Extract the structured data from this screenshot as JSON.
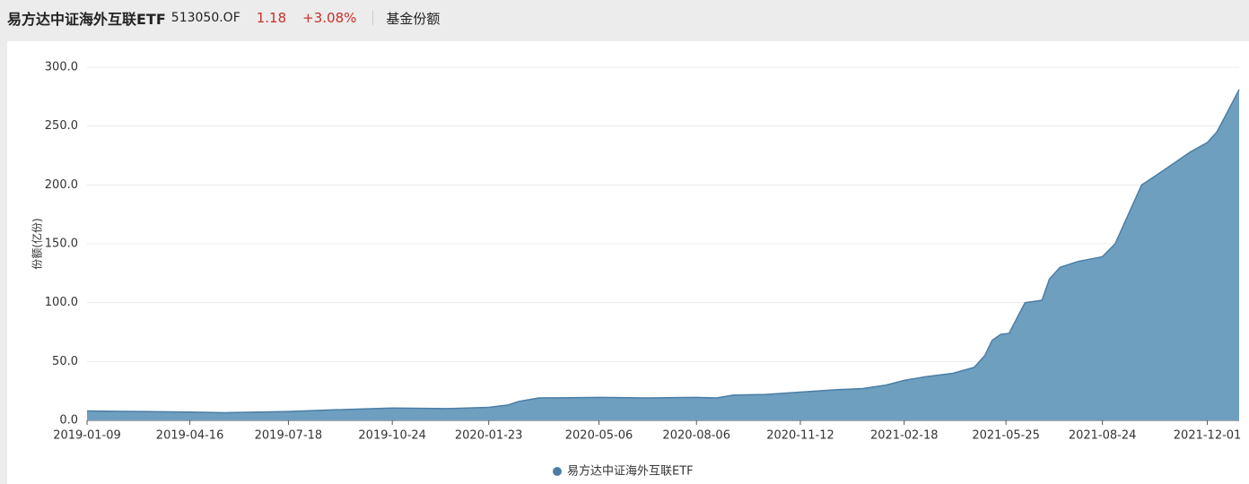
{
  "header": {
    "title": "易方达中证海外互联ETF",
    "code": "513050.OF",
    "price": "1.18",
    "change": "+3.08%",
    "tab": "基金份额"
  },
  "chart_data": {
    "type": "area",
    "y_label": "份额(亿份)",
    "x": [
      "2019-01-09",
      "2019-03-01",
      "2019-04-16",
      "2019-05-20",
      "2019-06-20",
      "2019-07-18",
      "2019-09-01",
      "2019-10-24",
      "2019-12-15",
      "2020-01-23",
      "2020-02-10",
      "2020-02-20",
      "2020-03-10",
      "2020-05-06",
      "2020-06-20",
      "2020-08-06",
      "2020-08-25",
      "2020-09-10",
      "2020-10-10",
      "2020-11-12",
      "2020-12-15",
      "2021-01-10",
      "2021-02-01",
      "2021-02-18",
      "2021-03-10",
      "2021-04-05",
      "2021-04-25",
      "2021-05-05",
      "2021-05-12",
      "2021-05-20",
      "2021-05-28",
      "2021-06-05",
      "2021-06-12",
      "2021-06-28",
      "2021-07-05",
      "2021-07-15",
      "2021-08-01",
      "2021-08-24",
      "2021-09-05",
      "2021-09-15",
      "2021-09-30",
      "2021-10-20",
      "2021-11-15",
      "2021-12-01",
      "2021-12-10",
      "2021-12-20",
      "2021-12-31"
    ],
    "series": [
      {
        "name": "易方达中证海外互联ETF",
        "color": "#4a7ea6",
        "fill": "#6f9fbf",
        "values": [
          8,
          7.5,
          7,
          6.5,
          7,
          7.5,
          9,
          10.5,
          10,
          11,
          13,
          16,
          19,
          19.5,
          19,
          19.5,
          19,
          21.5,
          22,
          24,
          26,
          27,
          30,
          34,
          37,
          40,
          45,
          55,
          68,
          73,
          74,
          88,
          100,
          102,
          120,
          130,
          135,
          139,
          150,
          170,
          200,
          212,
          228,
          236,
          245,
          262,
          281
        ]
      }
    ],
    "xlim": [
      "2019-01-09",
      "2021-12-31"
    ],
    "xticks": [
      "2019-01-09",
      "2019-04-16",
      "2019-07-18",
      "2019-10-24",
      "2020-01-23",
      "2020-05-06",
      "2020-08-06",
      "2020-11-12",
      "2021-02-18",
      "2021-05-25",
      "2021-08-24",
      "2021-12-01"
    ],
    "ylim": [
      0,
      300
    ],
    "yticks": [
      {
        "value": 0,
        "label": "0.0"
      },
      {
        "value": 50,
        "label": "50.0"
      },
      {
        "value": 100,
        "label": "100.0"
      },
      {
        "value": 150,
        "label": "150.0"
      },
      {
        "value": 200,
        "label": "200.0"
      },
      {
        "value": 250,
        "label": "250.0"
      },
      {
        "value": 300,
        "label": "300.0"
      }
    ],
    "grid": true,
    "legend": "bottom"
  }
}
